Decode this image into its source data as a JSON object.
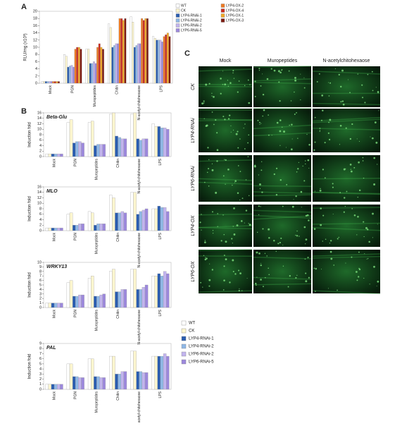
{
  "chart_data": [
    {
      "type": "bar",
      "panel_label": "A",
      "ylabel": "RLU/mg (x10³)",
      "ylim": [
        0,
        20
      ],
      "yticks": [
        0,
        2,
        4,
        6,
        8,
        10,
        12,
        14,
        16,
        18,
        20
      ],
      "categories": [
        "Mock",
        "PGN",
        "Muropeptides",
        "Chitin",
        "N-acetyl-chitohexaose",
        "LPS"
      ],
      "series": [
        {
          "name": "WT",
          "color": "#ffffff",
          "values": [
            0.5,
            8,
            9.5,
            16.5,
            18.5,
            13
          ]
        },
        {
          "name": "CK",
          "color": "#fdf6cf",
          "values": [
            0.5,
            7.5,
            9.5,
            15.5,
            17,
            12.5
          ]
        },
        {
          "name": "LYP4-RNAi-1",
          "color": "#2a5db0",
          "values": [
            0.5,
            4.5,
            5.5,
            10,
            10,
            12
          ]
        },
        {
          "name": "LYP4-RNAi-2",
          "color": "#8fb8e6",
          "values": [
            0.5,
            4.8,
            5.5,
            10.5,
            10.5,
            12
          ]
        },
        {
          "name": "LYP6-RNAi-2",
          "color": "#c2b4ee",
          "values": [
            0.5,
            5,
            6,
            11,
            11,
            12
          ]
        },
        {
          "name": "LYP6-RNAi-5",
          "color": "#9c88dc",
          "values": [
            0.5,
            4.5,
            5.5,
            11,
            11,
            11.5
          ]
        },
        {
          "name": "LYP4-OX-2",
          "color": "#ee7a22",
          "values": [
            0.5,
            9.5,
            10,
            18,
            18,
            13
          ]
        },
        {
          "name": "LYP4-OX-4",
          "color": "#cc2a1e",
          "values": [
            0.5,
            10,
            11,
            18,
            17.5,
            13.5
          ]
        },
        {
          "name": "LYP6-OX-1",
          "color": "#f2a826",
          "values": [
            0.5,
            10,
            10,
            17.5,
            18,
            14
          ]
        },
        {
          "name": "LYP6-OX-3",
          "color": "#7e1a10",
          "values": [
            0.5,
            9.5,
            9.5,
            18,
            18,
            13
          ]
        }
      ]
    },
    {
      "type": "bar",
      "panel_label": "B",
      "title": "Beta-Glu",
      "ylabel": "Induction fold",
      "ylim": [
        0,
        16
      ],
      "yticks": [
        0,
        2,
        4,
        6,
        8,
        10,
        12,
        14,
        16
      ],
      "categories": [
        "Mock",
        "PGN",
        "Muropeptides",
        "Chitin",
        "N-acetyl-chitohexaose",
        "LPS"
      ],
      "series": [
        {
          "color": "#ffffff",
          "values": [
            1,
            12.5,
            12.5,
            15.5,
            15.5,
            12
          ]
        },
        {
          "color": "#fdf6cf",
          "values": [
            1,
            13.5,
            13,
            16,
            16,
            11
          ]
        },
        {
          "color": "#2a5db0",
          "values": [
            1,
            5,
            4,
            7.5,
            6.5,
            11
          ]
        },
        {
          "color": "#8fb8e6",
          "values": [
            1,
            5.5,
            4.5,
            7,
            6,
            10.5
          ]
        },
        {
          "color": "#c2b4ee",
          "values": [
            1,
            5.5,
            4.5,
            6.5,
            6.5,
            10.5
          ]
        },
        {
          "color": "#9c88dc",
          "values": [
            1,
            5,
            4.5,
            6.5,
            6.5,
            10
          ]
        }
      ]
    },
    {
      "type": "bar",
      "title": "MLO",
      "ylabel": "Induction fold",
      "ylim": [
        0,
        16
      ],
      "yticks": [
        0,
        2,
        4,
        6,
        8,
        10,
        12,
        14,
        16
      ],
      "categories": [
        "Mock",
        "PGN",
        "Muropeptides",
        "Chitin",
        "N-acetyl-chitohexaose",
        "LPS"
      ],
      "series": [
        {
          "color": "#ffffff",
          "values": [
            1,
            6,
            7,
            13,
            14,
            8
          ]
        },
        {
          "color": "#fdf6cf",
          "values": [
            1,
            6.5,
            6.5,
            12,
            14,
            8
          ]
        },
        {
          "color": "#2a5db0",
          "values": [
            1,
            2,
            2,
            6.5,
            6,
            9
          ]
        },
        {
          "color": "#8fb8e6",
          "values": [
            1,
            2,
            2.5,
            6.5,
            7,
            8.5
          ]
        },
        {
          "color": "#c2b4ee",
          "values": [
            1,
            2.5,
            2.5,
            7,
            7.5,
            8.5
          ]
        },
        {
          "color": "#9c88dc",
          "values": [
            1,
            2.5,
            2.5,
            6.5,
            8,
            7
          ]
        }
      ]
    },
    {
      "type": "bar",
      "title": "WRKY13",
      "ylabel": "Induction fold",
      "ylim": [
        0,
        10
      ],
      "yticks": [
        0,
        1,
        2,
        3,
        4,
        5,
        6,
        7,
        8,
        9,
        10
      ],
      "categories": [
        "Mock",
        "PGN",
        "Muropeptides",
        "Chitin",
        "N-acetyl-chitohexaose",
        "LPS"
      ],
      "series": [
        {
          "color": "#ffffff",
          "values": [
            1,
            5.5,
            6.5,
            8,
            8.5,
            7
          ]
        },
        {
          "color": "#fdf6cf",
          "values": [
            1,
            6,
            7,
            8.5,
            8.5,
            7
          ]
        },
        {
          "color": "#2a5db0",
          "values": [
            1,
            2.5,
            2.5,
            3.5,
            4,
            7.5
          ]
        },
        {
          "color": "#8fb8e6",
          "values": [
            1,
            2.5,
            2.5,
            3.5,
            4,
            7
          ]
        },
        {
          "color": "#c2b4ee",
          "values": [
            1,
            2.8,
            2.8,
            4,
            4.5,
            8
          ]
        },
        {
          "color": "#9c88dc",
          "values": [
            1,
            2.8,
            3,
            4,
            5,
            7.5
          ]
        }
      ]
    },
    {
      "type": "bar",
      "title": "PAL",
      "ylabel": "Induction fold",
      "ylim": [
        0,
        9
      ],
      "yticks": [
        0,
        1,
        2,
        3,
        4,
        5,
        6,
        7,
        8,
        9
      ],
      "categories": [
        "Mock",
        "PGN",
        "Muropeptides",
        "Chitin",
        "N-acetyl-chitohexaose",
        "LPS"
      ],
      "series": [
        {
          "name": "WT",
          "color": "#ffffff",
          "values": [
            1,
            5,
            6,
            6.5,
            7.5,
            6.5
          ]
        },
        {
          "name": "CK",
          "color": "#fdf6cf",
          "values": [
            1,
            5,
            6,
            6.5,
            7.5,
            6.5
          ]
        },
        {
          "name": "LYP4-RNAi-1",
          "color": "#2a5db0",
          "values": [
            1,
            2.5,
            2.5,
            3,
            3.5,
            6.5
          ]
        },
        {
          "name": "LYP4-RNAi-2",
          "color": "#8fb8e6",
          "values": [
            1,
            2.5,
            2.5,
            3,
            3.5,
            6.5
          ]
        },
        {
          "name": "LYP6-RNAi-2",
          "color": "#c2b4ee",
          "values": [
            1,
            2.3,
            2.3,
            3.5,
            3.3,
            7
          ]
        },
        {
          "name": "LYP6-RNAi-5",
          "color": "#9c88dc",
          "values": [
            1,
            2.3,
            2.3,
            3.5,
            3.3,
            6.5
          ]
        }
      ]
    }
  ],
  "image_grid": {
    "panel_label": "C",
    "columns": [
      "Mock",
      "Muropeptides",
      "N-acetylchitohexaose"
    ],
    "rows": [
      "CK",
      "LYP4-RNAi",
      "LYP6-RNAi",
      "LYP4-OX",
      "LYP6-OX"
    ]
  }
}
